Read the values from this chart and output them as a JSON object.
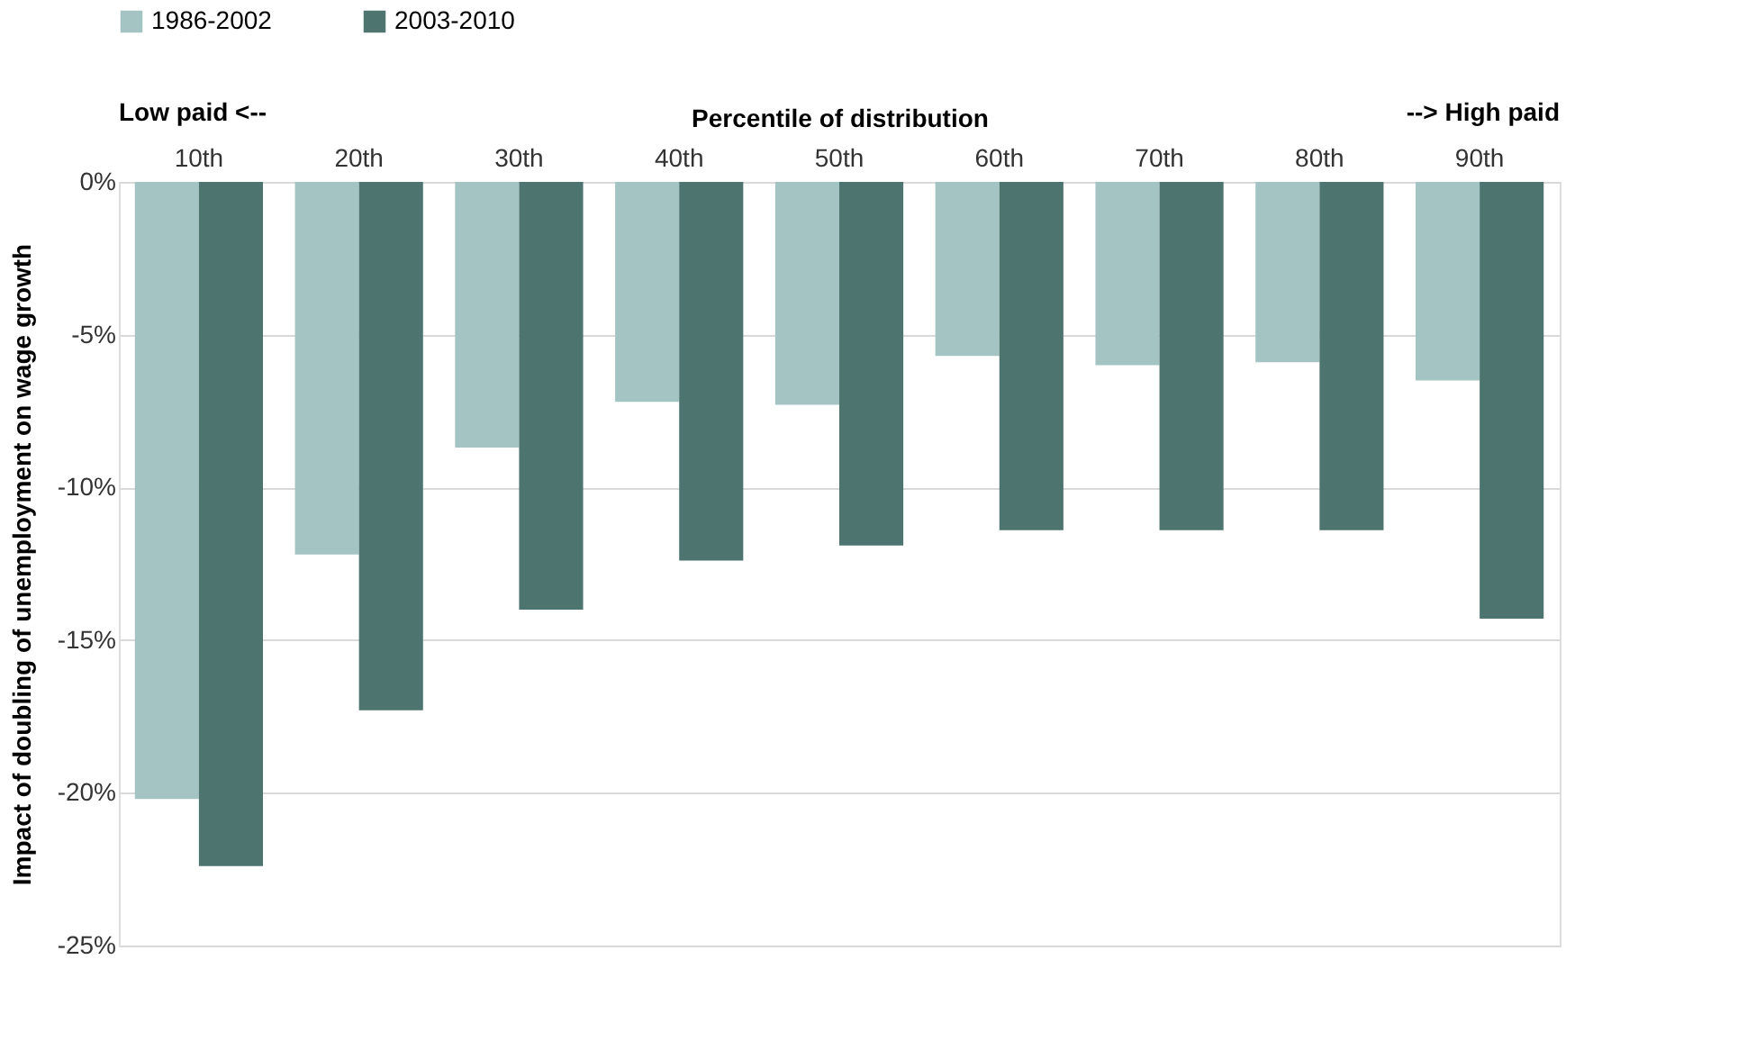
{
  "chart_data": {
    "type": "bar",
    "xlabel": "Percentile of distribution",
    "ylabel": "Impact of doubling of unemployment on wage growth",
    "annotations": [
      "Low paid <--",
      "--> High paid"
    ],
    "categories": [
      "10th",
      "20th",
      "30th",
      "40th",
      "50th",
      "60th",
      "70th",
      "80th",
      "90th"
    ],
    "series": [
      {
        "name": "1986-2002",
        "color": "#a3c4c2",
        "values": [
          -20.2,
          -12.2,
          -8.7,
          -7.2,
          -7.3,
          -5.7,
          -6.0,
          -5.9,
          -6.5
        ]
      },
      {
        "name": "2003-2010",
        "color": "#4e7470",
        "values": [
          -22.4,
          -17.3,
          -14.0,
          -12.4,
          -11.9,
          -11.4,
          -11.4,
          -11.4,
          -14.3
        ]
      }
    ],
    "ylim": [
      -25,
      0
    ],
    "yticks": [
      {
        "value": 0,
        "label": "0%"
      },
      {
        "value": -5,
        "label": "-5%"
      },
      {
        "value": -10,
        "label": "-10%"
      },
      {
        "value": -15,
        "label": "-15%"
      },
      {
        "value": -20,
        "label": "-20%"
      },
      {
        "value": -25,
        "label": "-25%"
      }
    ],
    "grid": "y",
    "legend": "top"
  }
}
